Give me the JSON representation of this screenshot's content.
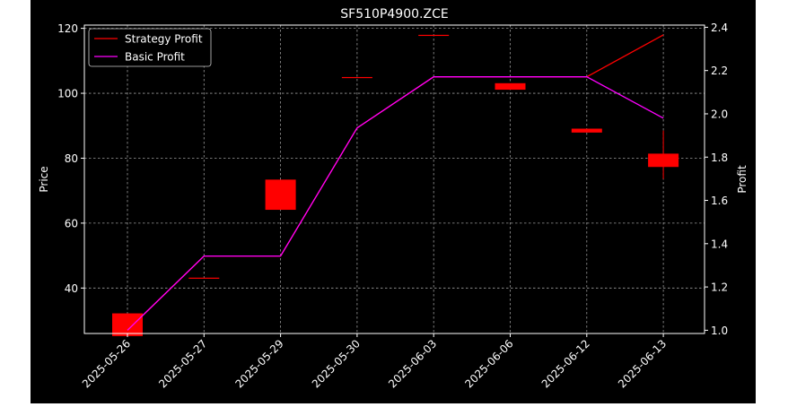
{
  "chart_data": {
    "type": "candlestick",
    "title": "SF510P4900.ZCE",
    "ylabel_left": "Price",
    "ylabel_right": "Profit",
    "x": [
      "2025-05-26",
      "2025-05-27",
      "2025-05-29",
      "2025-05-30",
      "2025-06-03",
      "2025-06-06",
      "2025-06-12",
      "2025-06-13"
    ],
    "ylim_left": [
      26,
      121
    ],
    "ylim_right": [
      0.985,
      2.41
    ],
    "yticks_left": [
      40,
      60,
      80,
      100,
      120
    ],
    "yticks_right": [
      1.0,
      1.2,
      1.4,
      1.6,
      1.8,
      2.0,
      2.2,
      2.4
    ],
    "candles": [
      {
        "open": 32.2,
        "close": 25.2,
        "high": 32.2,
        "low": 25.2
      },
      {
        "open": 43.2,
        "close": 43.2,
        "high": 43.2,
        "low": 43.2
      },
      {
        "open": 73.4,
        "close": 64.1,
        "high": 73.4,
        "low": 64.1
      },
      {
        "open": 105.0,
        "close": 105.0,
        "high": 105.0,
        "low": 105.0
      },
      {
        "open": 118.0,
        "close": 118.0,
        "high": 118.0,
        "low": 118.0
      },
      {
        "open": 103.1,
        "close": 101.1,
        "high": 103.1,
        "low": 101.1
      },
      {
        "open": 89.1,
        "close": 87.9,
        "high": 89.1,
        "low": 87.9
      },
      {
        "open": 81.4,
        "close": 77.3,
        "high": 88.5,
        "low": 73.6
      }
    ],
    "series": [
      {
        "name": "Strategy Profit",
        "color": "#ff0000",
        "values": [
          1.0,
          1.343,
          1.343,
          1.935,
          2.171,
          2.171,
          2.171,
          2.365
        ]
      },
      {
        "name": "Basic Profit",
        "color": "#ff00ff",
        "values": [
          1.0,
          1.343,
          1.343,
          1.935,
          2.171,
          2.171,
          2.171,
          1.98
        ]
      }
    ],
    "candle_color": "#ff0000",
    "grid": true,
    "legend_position": "top-left",
    "colors": {
      "background": "#000000",
      "page": "#ffffff",
      "axes": "#ffffff",
      "grid": "#9a9a9a",
      "text": "#ffffff"
    }
  }
}
